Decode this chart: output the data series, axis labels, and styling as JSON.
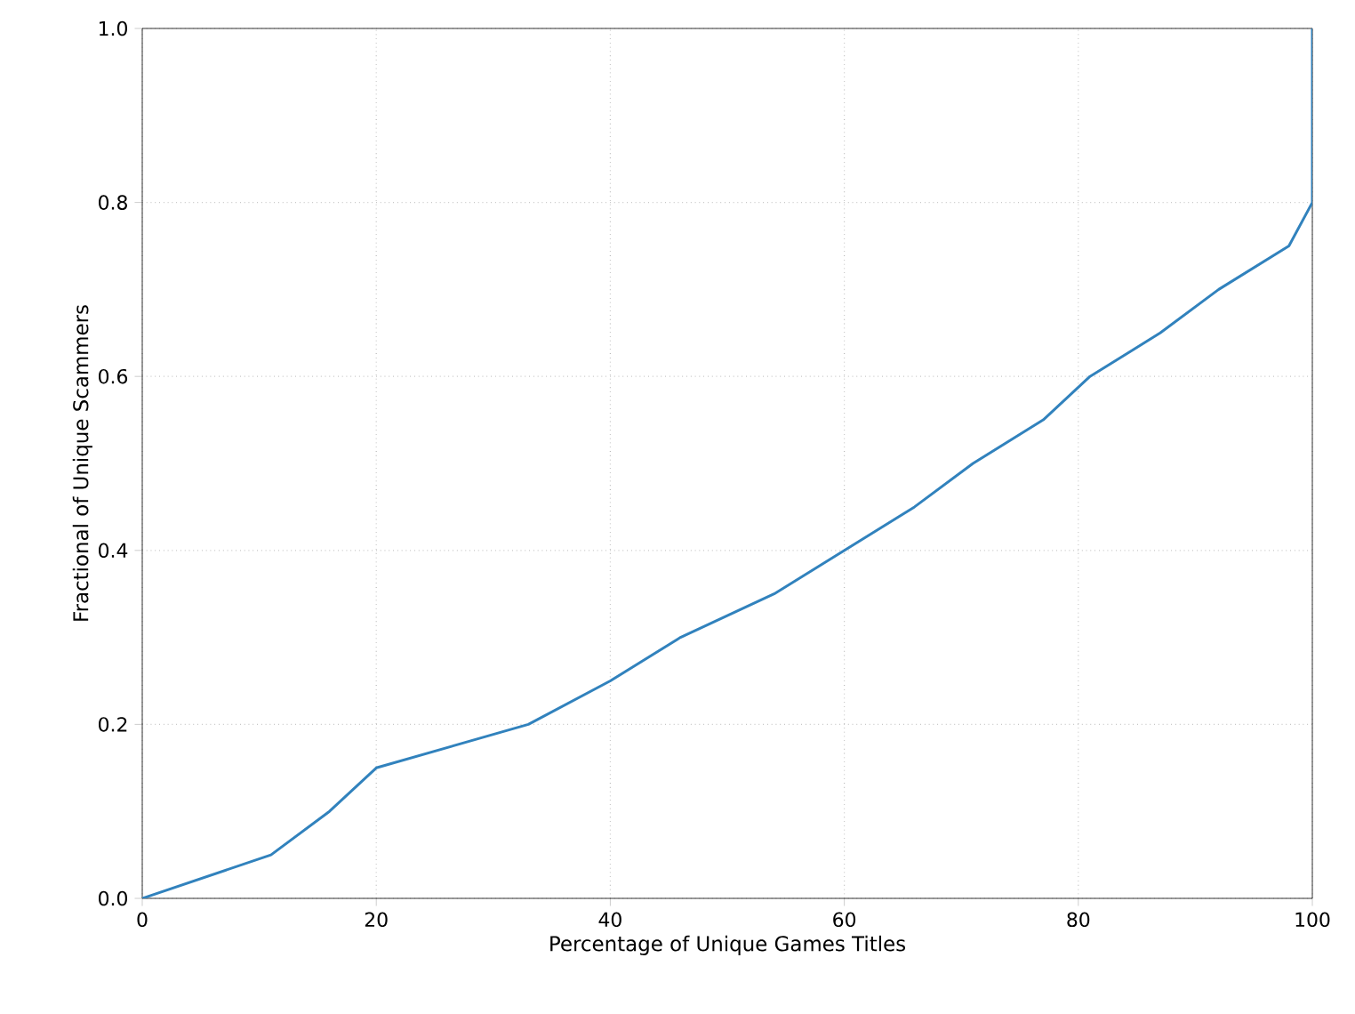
{
  "chart_data": {
    "type": "line",
    "xlabel": "Percentage of Unique Games Titles",
    "ylabel": "Fractional of Unique Scammers",
    "x": [
      0,
      11,
      16,
      20,
      33,
      40,
      46,
      54,
      60,
      66,
      71,
      77,
      81,
      87,
      92,
      98,
      100,
      100
    ],
    "series": [
      {
        "color": "#3182bd",
        "values": [
          0,
          0.05,
          0.1,
          0.15,
          0.2,
          0.25,
          0.3,
          0.35,
          0.4,
          0.45,
          0.5,
          0.55,
          0.6,
          0.65,
          0.7,
          0.75,
          0.8,
          1.0
        ]
      }
    ],
    "xlim": [
      0,
      100
    ],
    "ylim": [
      0,
      1
    ],
    "xticks": [
      0,
      20,
      40,
      60,
      80,
      100
    ],
    "yticks": [
      {
        "value": 0,
        "label": "0.0"
      },
      {
        "value": 0.2,
        "label": "0.2"
      },
      {
        "value": 0.4,
        "label": "0.4"
      },
      {
        "value": 0.6,
        "label": "0.6"
      },
      {
        "value": 0.8,
        "label": "0.8"
      },
      {
        "value": 1,
        "label": "1.0"
      }
    ],
    "grid": true,
    "marker": "none",
    "line_style": "solid"
  }
}
